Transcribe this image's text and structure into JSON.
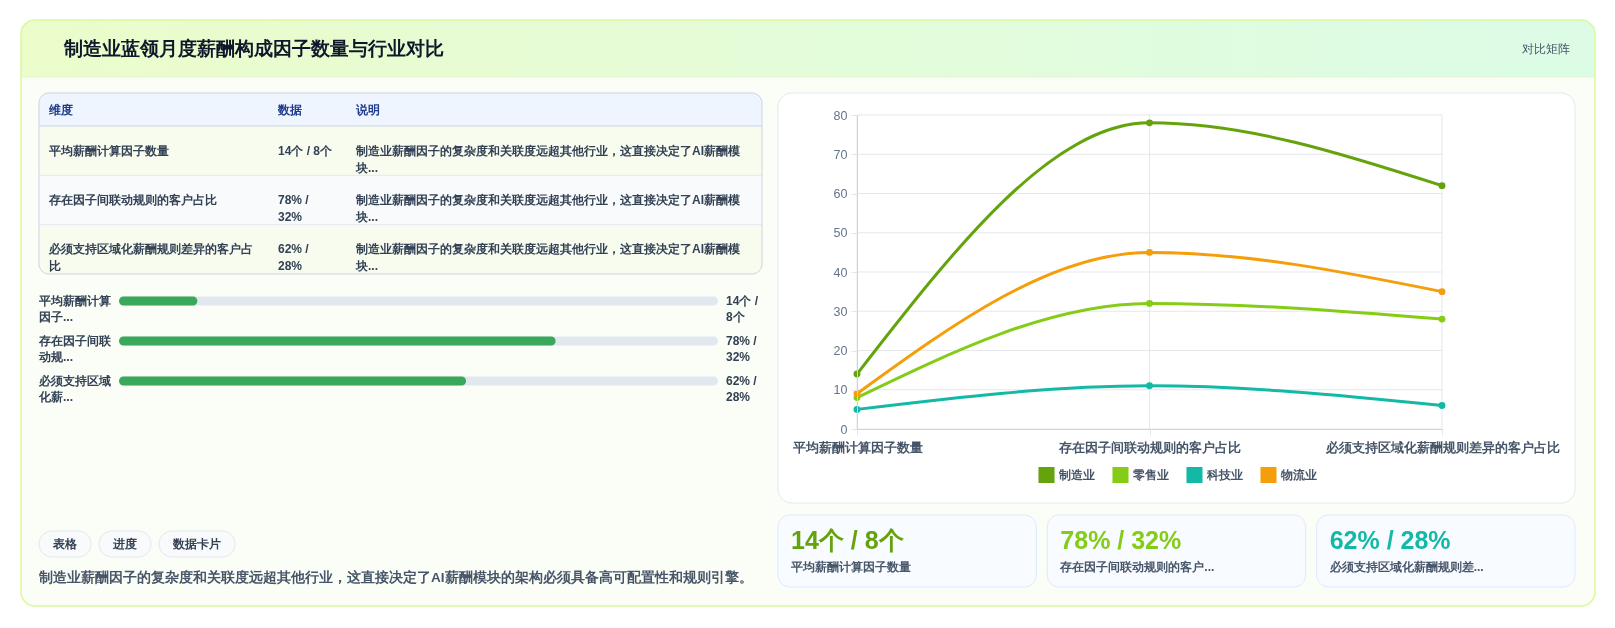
{
  "chart_data": [
    {
      "type": "other",
      "title": "制造业蓝领月度薪酬构成因子数量与行业对比",
      "subtitle": "对比矩阵",
      "annotations": [
        "维度",
        "数据",
        "说明",
        "平均薪酬计算因子数量",
        "14个 / 8个",
        "制造业薪酬因子的复杂度和关联度远超其他行业，这直接决定了AI薪酬模块...",
        "存在因子间联动规则的客户占比",
        "78% / 32%",
        "制造业薪酬因子的复杂度和关联度远超其他行业，这直接决定了AI薪酬模块...",
        "必须支持区域化薪酬规则差异的客户占比",
        "62% / 28%",
        "制造业薪酬因子的复杂度和关联度远超其他行业，这直接决定了AI薪酬模块..."
      ]
    },
    {
      "type": "bar",
      "orientation": "horizontal",
      "categories": [
        "平均薪酬计算因子...",
        "存在因子间联动规...",
        "必须支持区域化薪..."
      ],
      "values": [
        14,
        78,
        62
      ],
      "value_labels": [
        "14个 / 8个",
        "78% / 32%",
        "62% / 28%"
      ],
      "color": "#3aa85a",
      "xlim": [
        0,
        107
      ],
      "tick_labels": "y",
      "annotations": [
        "表格",
        "进度",
        "数据卡片",
        "制造业薪酬因子的复杂度和关联度远超其他行业，这直接决定了AI薪酬模块的架构必须具备高可配置性和规则引擎。"
      ]
    },
    {
      "type": "line",
      "categories": [
        "平均薪酬计算因子数量",
        "存在因子间联动规则的客户占比",
        "必须支持区域化薪酬规则差异的客户占比"
      ],
      "series": [
        {
          "name": "制造业",
          "color": "#65a30d",
          "values": [
            14,
            78,
            62
          ]
        },
        {
          "name": "零售业",
          "color": "#84cc16",
          "values": [
            8,
            32,
            28
          ]
        },
        {
          "name": "科技业",
          "color": "#14b8a6",
          "values": [
            5,
            11,
            6
          ]
        },
        {
          "name": "物流业",
          "color": "#f59e0b",
          "values": [
            9,
            45,
            35
          ]
        }
      ],
      "ylim": [
        0,
        80
      ],
      "yticks": [
        0,
        10,
        20,
        30,
        40,
        50,
        60,
        70,
        80
      ],
      "grid": true,
      "legend": "bottom",
      "marker": "circle",
      "line_style": "solid"
    },
    {
      "type": "other",
      "annotations": [
        "14个 / 8个",
        "平均薪酬计算因子数量",
        "78% / 32%",
        "存在因子间联动规则的客户...",
        "62% / 28%",
        "必须支持区域化薪酬规则差..."
      ],
      "colors": [
        "#65a30d",
        "#84cc16",
        "#14b8a6"
      ]
    }
  ]
}
